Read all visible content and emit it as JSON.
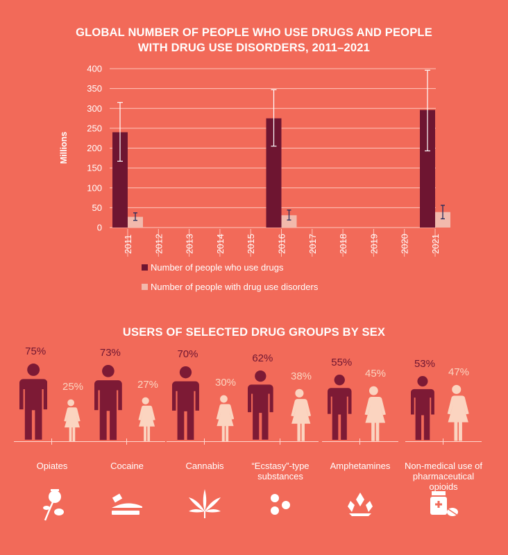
{
  "title_line1": "GLOBAL NUMBER OF PEOPLE WHO USE DRUGS AND PEOPLE",
  "title_line2": "WITH DRUG USE DISORDERS, 2011–2021",
  "colors": {
    "background": "#f26a59",
    "users": "#6e1531",
    "disorders": "#f2b9ac",
    "male": "#7d1a35",
    "female": "#fbd4c0",
    "error_bar": "#ffffff",
    "error_bar_small": "#1f2a5a"
  },
  "chart_data": {
    "type": "bar",
    "title": "GLOBAL NUMBER OF PEOPLE WHO USE DRUGS AND PEOPLE WITH DRUG USE DISORDERS, 2011–2021",
    "ylabel": "Millions",
    "xlabel": "",
    "ylim": [
      0,
      400
    ],
    "yticks": [
      0,
      50,
      100,
      150,
      200,
      250,
      300,
      350,
      400
    ],
    "grid": true,
    "categories": [
      "2011",
      "2012",
      "2013",
      "2014",
      "2015",
      "2016",
      "2017",
      "2018",
      "2019",
      "2020",
      "2021"
    ],
    "legend_position": "bottom",
    "series": [
      {
        "name": "Number of people who use drugs",
        "values": [
          240,
          null,
          null,
          null,
          null,
          275,
          null,
          null,
          null,
          null,
          296
        ],
        "error_low": [
          167,
          null,
          null,
          null,
          null,
          205,
          null,
          null,
          null,
          null,
          193
        ],
        "error_high": [
          315,
          null,
          null,
          null,
          null,
          347,
          null,
          null,
          null,
          null,
          396
        ]
      },
      {
        "name": "Number of people with drug use disorders",
        "values": [
          27,
          null,
          null,
          null,
          null,
          31,
          null,
          null,
          null,
          null,
          39
        ],
        "error_low": [
          18,
          null,
          null,
          null,
          null,
          19,
          null,
          null,
          null,
          null,
          22
        ],
        "error_high": [
          37,
          null,
          null,
          null,
          null,
          44,
          null,
          null,
          null,
          null,
          56
        ]
      }
    ]
  },
  "legend": {
    "users": "Number of people who use drugs",
    "disorders": "Number of people with drug use disorders"
  },
  "sex_section": {
    "title": "USERS OF SELECTED DRUG GROUPS BY SEX",
    "groups": [
      {
        "drug": "Opiates",
        "male_pct": "75%",
        "female_pct": "25%",
        "male": 75,
        "female": 25,
        "icon": "poppy-icon"
      },
      {
        "drug": "Cocaine",
        "male_pct": "73%",
        "female_pct": "27%",
        "male": 73,
        "female": 27,
        "icon": "cocaine-icon"
      },
      {
        "drug": "Cannabis",
        "male_pct": "70%",
        "female_pct": "30%",
        "male": 70,
        "female": 30,
        "icon": "cannabis-leaf-icon"
      },
      {
        "drug": "“Ecstasy”-type substances",
        "male_pct": "62%",
        "female_pct": "38%",
        "male": 62,
        "female": 38,
        "icon": "pills-icon"
      },
      {
        "drug": "Amphetamines",
        "male_pct": "55%",
        "female_pct": "45%",
        "male": 55,
        "female": 45,
        "icon": "crystals-icon"
      },
      {
        "drug": "Non-medical use of pharmaceutical opioids",
        "male_pct": "53%",
        "female_pct": "47%",
        "male": 53,
        "female": 47,
        "icon": "pill-bottle-icon"
      }
    ]
  }
}
